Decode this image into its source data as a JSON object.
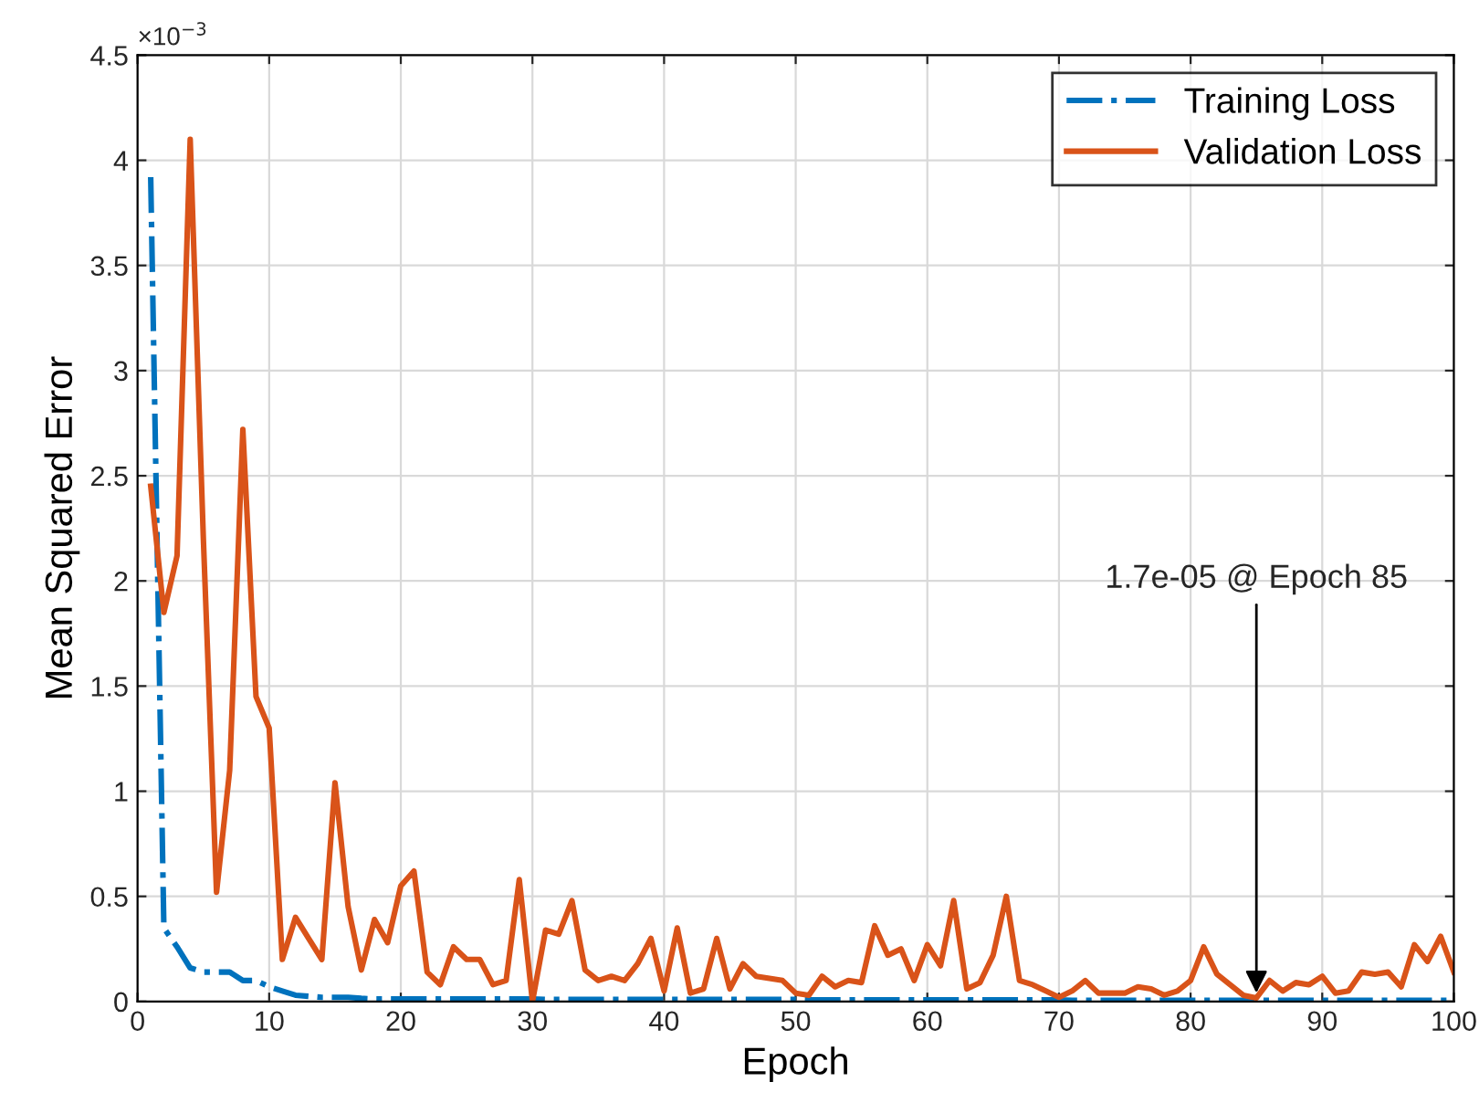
{
  "chart_data": {
    "type": "line",
    "xlabel": "Epoch",
    "ylabel": "Mean Squared Error",
    "x": [
      1,
      2,
      3,
      4,
      5,
      6,
      7,
      8,
      9,
      10,
      11,
      12,
      13,
      14,
      15,
      16,
      17,
      18,
      19,
      20,
      21,
      22,
      23,
      24,
      25,
      26,
      27,
      28,
      29,
      30,
      31,
      32,
      33,
      34,
      35,
      36,
      37,
      38,
      39,
      40,
      41,
      42,
      43,
      44,
      45,
      46,
      47,
      48,
      49,
      50,
      51,
      52,
      53,
      54,
      55,
      56,
      57,
      58,
      59,
      60,
      61,
      62,
      63,
      64,
      65,
      66,
      67,
      68,
      69,
      70,
      71,
      72,
      73,
      74,
      75,
      76,
      77,
      78,
      79,
      80,
      81,
      82,
      83,
      84,
      85,
      86,
      87,
      88,
      89,
      90,
      91,
      92,
      93,
      94,
      95,
      96,
      97,
      98,
      99,
      100
    ],
    "series": [
      {
        "name": "Training Loss",
        "color": "#0072bd",
        "line_style": "dashdot",
        "values": [
          3.92,
          0.35,
          0.26,
          0.16,
          0.14,
          0.14,
          0.14,
          0.1,
          0.1,
          0.07,
          0.05,
          0.03,
          0.025,
          0.02,
          0.02,
          0.02,
          0.015,
          0.012,
          0.012,
          0.012,
          0.012,
          0.012,
          0.012,
          0.012,
          0.012,
          0.012,
          0.012,
          0.012,
          0.012,
          0.012,
          0.01,
          0.01,
          0.01,
          0.01,
          0.01,
          0.01,
          0.01,
          0.01,
          0.01,
          0.01,
          0.01,
          0.01,
          0.01,
          0.01,
          0.01,
          0.01,
          0.01,
          0.01,
          0.01,
          0.01,
          0.008,
          0.008,
          0.008,
          0.008,
          0.008,
          0.008,
          0.008,
          0.008,
          0.008,
          0.008,
          0.008,
          0.008,
          0.008,
          0.008,
          0.008,
          0.008,
          0.008,
          0.008,
          0.008,
          0.008,
          0.006,
          0.006,
          0.006,
          0.006,
          0.006,
          0.006,
          0.006,
          0.006,
          0.006,
          0.006,
          0.006,
          0.006,
          0.006,
          0.006,
          0.006,
          0.006,
          0.006,
          0.006,
          0.006,
          0.006,
          0.006,
          0.006,
          0.006,
          0.006,
          0.006,
          0.006,
          0.006,
          0.006,
          0.006,
          0.006
        ]
      },
      {
        "name": "Validation Loss",
        "color": "#d95319",
        "line_style": "solid",
        "values": [
          2.45,
          1.85,
          2.12,
          4.1,
          2.2,
          0.52,
          1.1,
          2.72,
          1.45,
          1.3,
          0.2,
          0.4,
          0.3,
          0.2,
          1.04,
          0.45,
          0.15,
          0.39,
          0.28,
          0.55,
          0.62,
          0.14,
          0.08,
          0.26,
          0.2,
          0.2,
          0.08,
          0.1,
          0.58,
          0.0,
          0.34,
          0.32,
          0.48,
          0.15,
          0.1,
          0.12,
          0.1,
          0.18,
          0.3,
          0.05,
          0.35,
          0.04,
          0.06,
          0.3,
          0.06,
          0.18,
          0.12,
          0.11,
          0.1,
          0.04,
          0.03,
          0.12,
          0.07,
          0.1,
          0.09,
          0.36,
          0.22,
          0.25,
          0.1,
          0.27,
          0.17,
          0.48,
          0.06,
          0.09,
          0.22,
          0.5,
          0.1,
          0.08,
          0.05,
          0.02,
          0.05,
          0.1,
          0.04,
          0.04,
          0.04,
          0.07,
          0.06,
          0.03,
          0.05,
          0.1,
          0.26,
          0.13,
          0.08,
          0.03,
          0.017,
          0.1,
          0.05,
          0.09,
          0.08,
          0.12,
          0.04,
          0.05,
          0.14,
          0.13,
          0.14,
          0.07,
          0.27,
          0.19,
          0.31,
          0.14
        ]
      }
    ],
    "xlim": [
      0,
      100
    ],
    "xticks": [
      0,
      10,
      20,
      30,
      40,
      50,
      60,
      70,
      80,
      90,
      100
    ],
    "ylim": [
      0,
      4.5
    ],
    "yticks": [
      0,
      0.5,
      1,
      1.5,
      2,
      2.5,
      3,
      3.5,
      4,
      4.5
    ],
    "annotations": [
      "×10$^{−3}$",
      {
        "text": "1.7e-05 @ Epoch 85",
        "x": 85,
        "y": 0.017
      }
    ],
    "grid": true,
    "legend": "top right",
    "marker": "none"
  }
}
